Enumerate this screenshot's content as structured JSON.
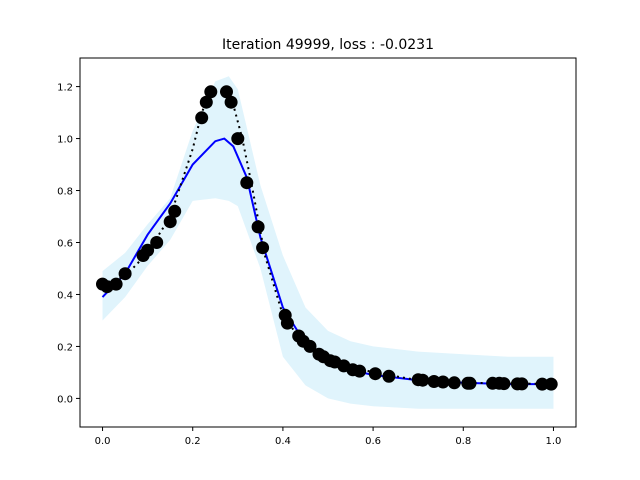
{
  "chart_data": {
    "type": "line",
    "title": "Iteration 49999, loss : -0.0231",
    "xlim": [
      -0.05,
      1.05
    ],
    "ylim": [
      -0.11,
      1.31
    ],
    "x_ticks": [
      {
        "value": 0.0,
        "label": "0.0"
      },
      {
        "value": 0.2,
        "label": "0.2"
      },
      {
        "value": 0.4,
        "label": "0.4"
      },
      {
        "value": 0.6,
        "label": "0.6"
      },
      {
        "value": 0.8,
        "label": "0.8"
      },
      {
        "value": 1.0,
        "label": "1.0"
      }
    ],
    "y_ticks": [
      {
        "value": 0.0,
        "label": "0.0"
      },
      {
        "value": 0.2,
        "label": "0.2"
      },
      {
        "value": 0.4,
        "label": "0.4"
      },
      {
        "value": 0.6,
        "label": "0.6"
      },
      {
        "value": 0.8,
        "label": "0.8"
      },
      {
        "value": 1.0,
        "label": "1.0"
      },
      {
        "value": 1.2,
        "label": "1.2"
      }
    ],
    "colors": {
      "band": "#e0f4fc",
      "mean": "#0000ff",
      "truth": "#000000",
      "points": "#000000"
    },
    "band": {
      "x": [
        0.0,
        0.05,
        0.1,
        0.15,
        0.2,
        0.25,
        0.28,
        0.3,
        0.35,
        0.4,
        0.45,
        0.5,
        0.55,
        0.6,
        0.7,
        0.8,
        0.9,
        1.0
      ],
      "upper": [
        0.49,
        0.56,
        0.67,
        0.77,
        1.03,
        1.22,
        1.24,
        1.19,
        0.82,
        0.55,
        0.35,
        0.26,
        0.22,
        0.2,
        0.18,
        0.17,
        0.16,
        0.16
      ],
      "lower": [
        0.3,
        0.39,
        0.51,
        0.61,
        0.76,
        0.77,
        0.76,
        0.74,
        0.5,
        0.16,
        0.05,
        0.0,
        -0.02,
        -0.03,
        -0.04,
        -0.04,
        -0.04,
        -0.04
      ]
    },
    "mean_line": {
      "x": [
        0.0,
        0.05,
        0.1,
        0.15,
        0.2,
        0.25,
        0.27,
        0.29,
        0.32,
        0.35,
        0.4,
        0.45,
        0.5,
        0.55,
        0.6,
        0.7,
        0.8,
        0.9,
        1.0
      ],
      "y": [
        0.39,
        0.48,
        0.63,
        0.75,
        0.9,
        0.99,
        1.0,
        0.97,
        0.85,
        0.62,
        0.35,
        0.21,
        0.15,
        0.11,
        0.09,
        0.07,
        0.06,
        0.055,
        0.055
      ]
    },
    "truth_line": {
      "x": [
        0.0,
        0.05,
        0.1,
        0.15,
        0.2,
        0.22,
        0.24,
        0.27,
        0.29,
        0.31,
        0.33,
        0.36,
        0.4,
        0.45,
        0.5,
        0.6,
        0.7,
        0.8,
        0.9,
        1.0
      ],
      "y": [
        0.44,
        0.47,
        0.56,
        0.7,
        0.96,
        1.1,
        1.18,
        1.18,
        1.13,
        1.0,
        0.83,
        0.55,
        0.32,
        0.2,
        0.15,
        0.1,
        0.07,
        0.06,
        0.058,
        0.055
      ]
    },
    "points": {
      "x": [
        0.0,
        0.01,
        0.03,
        0.05,
        0.09,
        0.1,
        0.12,
        0.15,
        0.16,
        0.22,
        0.23,
        0.24,
        0.275,
        0.285,
        0.3,
        0.32,
        0.345,
        0.355,
        0.405,
        0.41,
        0.435,
        0.445,
        0.46,
        0.48,
        0.49,
        0.505,
        0.515,
        0.535,
        0.555,
        0.57,
        0.605,
        0.635,
        0.7,
        0.71,
        0.735,
        0.755,
        0.78,
        0.81,
        0.815,
        0.865,
        0.88,
        0.89,
        0.92,
        0.93,
        0.975,
        0.995
      ],
      "y": [
        0.44,
        0.43,
        0.44,
        0.48,
        0.55,
        0.57,
        0.6,
        0.68,
        0.72,
        1.08,
        1.14,
        1.18,
        1.18,
        1.14,
        1.0,
        0.83,
        0.66,
        0.58,
        0.32,
        0.29,
        0.24,
        0.22,
        0.2,
        0.17,
        0.16,
        0.145,
        0.14,
        0.125,
        0.11,
        0.105,
        0.095,
        0.085,
        0.072,
        0.07,
        0.065,
        0.063,
        0.06,
        0.058,
        0.058,
        0.058,
        0.058,
        0.057,
        0.056,
        0.056,
        0.055,
        0.055
      ]
    }
  }
}
